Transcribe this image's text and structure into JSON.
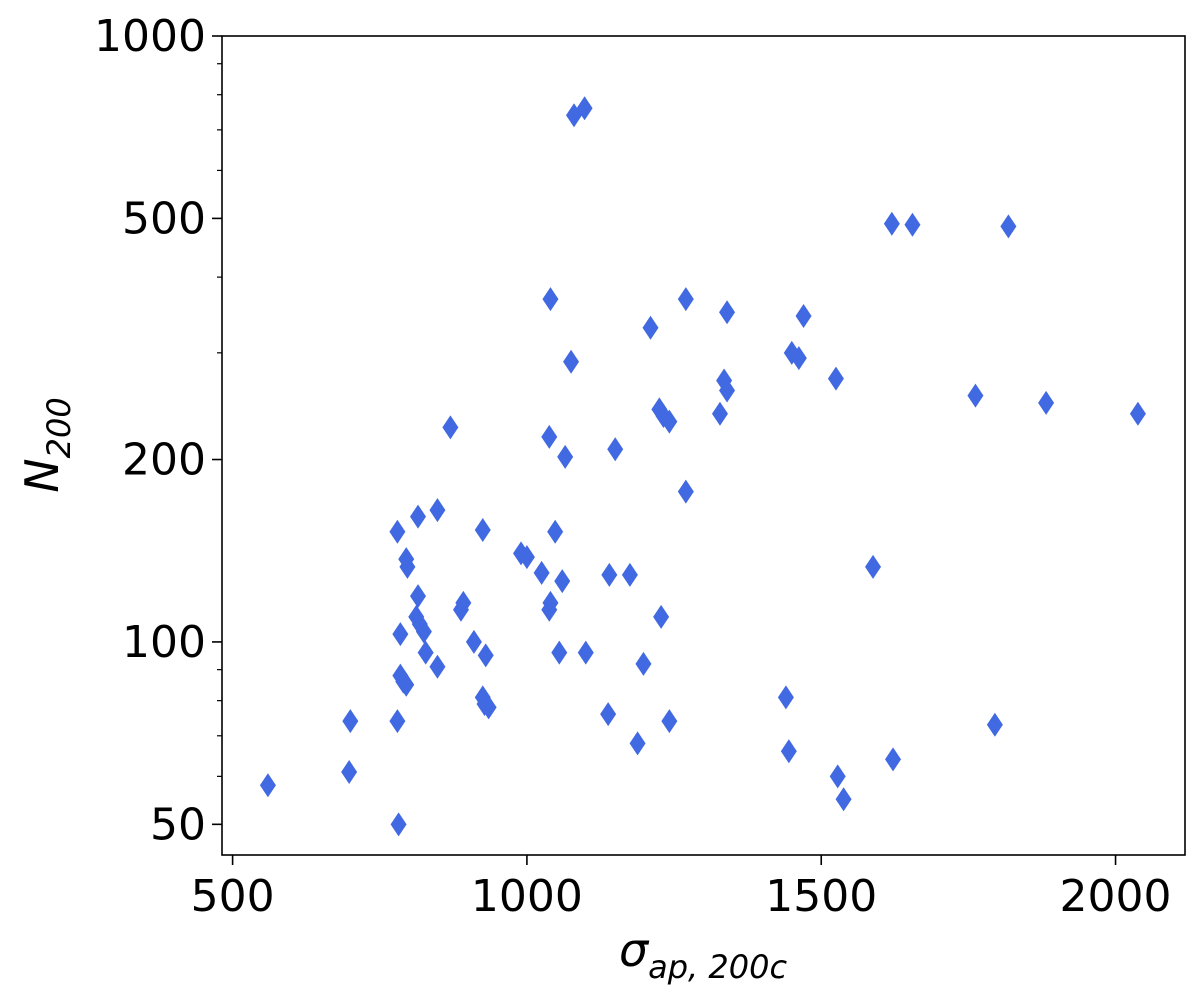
{
  "chart_data": {
    "type": "scatter",
    "xlabel": "σ",
    "xlabel_sub": "ap, 200c",
    "ylabel": "N",
    "ylabel_sub": "200",
    "xlim": [
      482,
      2118
    ],
    "ylim": [
      44.5,
      1000
    ],
    "yscale": "log",
    "grid": false,
    "marker": "diamond",
    "marker_color": "#4169e1",
    "x_ticks": [
      {
        "value": 500,
        "label": "500"
      },
      {
        "value": 1000,
        "label": "1000"
      },
      {
        "value": 1500,
        "label": "1500"
      },
      {
        "value": 2000,
        "label": "2000"
      }
    ],
    "y_ticks": [
      {
        "value": 50,
        "label": "50"
      },
      {
        "value": 100,
        "label": "100"
      },
      {
        "value": 200,
        "label": "200"
      },
      {
        "value": 500,
        "label": "500"
      },
      {
        "value": 1000,
        "label": "1000"
      }
    ],
    "y_minor_ticks": [
      60,
      70,
      80,
      90,
      300,
      400,
      600,
      700,
      800,
      900
    ],
    "points": [
      {
        "x": 1080,
        "y": 740
      },
      {
        "x": 1098,
        "y": 760
      },
      {
        "x": 1620,
        "y": 490
      },
      {
        "x": 1655,
        "y": 488
      },
      {
        "x": 1818,
        "y": 485
      },
      {
        "x": 1040,
        "y": 368
      },
      {
        "x": 1270,
        "y": 368
      },
      {
        "x": 1340,
        "y": 350
      },
      {
        "x": 1470,
        "y": 345
      },
      {
        "x": 1210,
        "y": 330
      },
      {
        "x": 1450,
        "y": 300
      },
      {
        "x": 1462,
        "y": 294
      },
      {
        "x": 1075,
        "y": 290
      },
      {
        "x": 1525,
        "y": 272
      },
      {
        "x": 1335,
        "y": 270
      },
      {
        "x": 1340,
        "y": 260
      },
      {
        "x": 1762,
        "y": 255
      },
      {
        "x": 1882,
        "y": 248
      },
      {
        "x": 1225,
        "y": 242
      },
      {
        "x": 1328,
        "y": 238
      },
      {
        "x": 2038,
        "y": 238
      },
      {
        "x": 1232,
        "y": 236
      },
      {
        "x": 1242,
        "y": 231
      },
      {
        "x": 870,
        "y": 226
      },
      {
        "x": 1038,
        "y": 218
      },
      {
        "x": 1150,
        "y": 208
      },
      {
        "x": 1065,
        "y": 202
      },
      {
        "x": 1270,
        "y": 177
      },
      {
        "x": 848,
        "y": 165
      },
      {
        "x": 815,
        "y": 161
      },
      {
        "x": 780,
        "y": 152
      },
      {
        "x": 925,
        "y": 153
      },
      {
        "x": 1048,
        "y": 152
      },
      {
        "x": 990,
        "y": 140
      },
      {
        "x": 1000,
        "y": 138
      },
      {
        "x": 795,
        "y": 137
      },
      {
        "x": 797,
        "y": 133
      },
      {
        "x": 1588,
        "y": 133
      },
      {
        "x": 1025,
        "y": 130
      },
      {
        "x": 1140,
        "y": 129
      },
      {
        "x": 1175,
        "y": 129
      },
      {
        "x": 1060,
        "y": 126
      },
      {
        "x": 815,
        "y": 119
      },
      {
        "x": 892,
        "y": 116
      },
      {
        "x": 888,
        "y": 113
      },
      {
        "x": 1040,
        "y": 116
      },
      {
        "x": 1038,
        "y": 113
      },
      {
        "x": 1228,
        "y": 110
      },
      {
        "x": 812,
        "y": 110
      },
      {
        "x": 818,
        "y": 107
      },
      {
        "x": 825,
        "y": 104
      },
      {
        "x": 785,
        "y": 103
      },
      {
        "x": 910,
        "y": 100
      },
      {
        "x": 828,
        "y": 96
      },
      {
        "x": 1055,
        "y": 96
      },
      {
        "x": 1100,
        "y": 96
      },
      {
        "x": 930,
        "y": 95
      },
      {
        "x": 848,
        "y": 91
      },
      {
        "x": 1198,
        "y": 92
      },
      {
        "x": 785,
        "y": 88
      },
      {
        "x": 790,
        "y": 86
      },
      {
        "x": 795,
        "y": 85
      },
      {
        "x": 925,
        "y": 81
      },
      {
        "x": 1440,
        "y": 81
      },
      {
        "x": 928,
        "y": 79
      },
      {
        "x": 935,
        "y": 78
      },
      {
        "x": 1138,
        "y": 76
      },
      {
        "x": 700,
        "y": 74
      },
      {
        "x": 780,
        "y": 74
      },
      {
        "x": 1242,
        "y": 74
      },
      {
        "x": 1795,
        "y": 73
      },
      {
        "x": 1188,
        "y": 68
      },
      {
        "x": 1445,
        "y": 66
      },
      {
        "x": 1622,
        "y": 64
      },
      {
        "x": 698,
        "y": 61
      },
      {
        "x": 1528,
        "y": 60
      },
      {
        "x": 560,
        "y": 58
      },
      {
        "x": 1538,
        "y": 55
      },
      {
        "x": 782,
        "y": 50
      }
    ]
  }
}
